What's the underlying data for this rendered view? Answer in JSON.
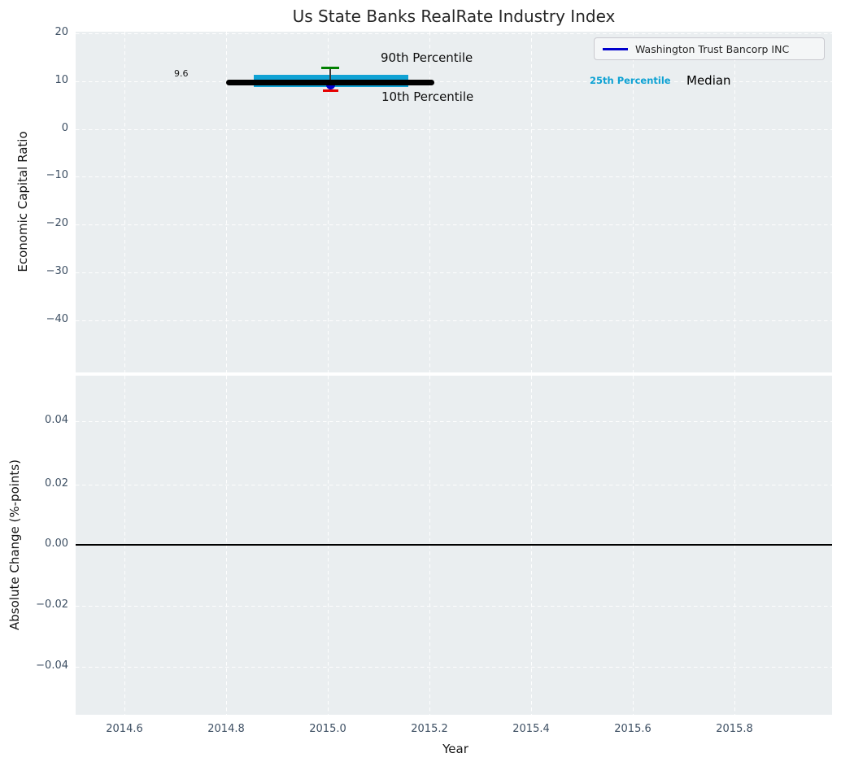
{
  "title": "Us State Banks RealRate Industry Index",
  "legend": {
    "series_label": "Washington Trust Bancorp INC"
  },
  "colors": {
    "axes_background": "#eaeef0",
    "grid": "#ffffff",
    "tick_label": "#3d4f63",
    "median_line": "#000000",
    "iqr_band": "#10a2d4",
    "p90_cap": "#008000",
    "p10_cap": "#e60000",
    "company_marker": "#0000cd",
    "legend_line": "#0000cd",
    "zero_line": "#000000",
    "p25_label_text": "#0ca1d3"
  },
  "top_chart": {
    "ylabel": "Economic Capital Ratio",
    "ytick_labels": [
      "20",
      "10",
      "0",
      "−10",
      "−20",
      "−30",
      "−40"
    ],
    "annotations": {
      "p90": "90th Percentile",
      "p10": "10th Percentile",
      "p25": "25th Percentile",
      "median": "Median",
      "value": "9.6"
    }
  },
  "bottom_chart": {
    "ylabel": "Absolute Change (%-points)",
    "xlabel": "Year",
    "ytick_labels": [
      "0.04",
      "0.02",
      "0.00",
      "−0.02",
      "−0.04"
    ],
    "xtick_labels": [
      "2014.6",
      "2014.8",
      "2015.0",
      "2015.2",
      "2015.4",
      "2015.6",
      "2015.8"
    ]
  },
  "chart_data": [
    {
      "type": "line",
      "title": "Us State Banks RealRate Industry Index",
      "xlabel": "",
      "ylabel": "Economic Capital Ratio",
      "xlim": [
        2014.5,
        2016.0
      ],
      "ylim": [
        -50.5,
        20.5
      ],
      "xticks": [
        2014.6,
        2014.8,
        2015.0,
        2015.2,
        2015.4,
        2015.6,
        2015.8
      ],
      "yticks": [
        20,
        10,
        0,
        -10,
        -20,
        -30,
        -40
      ],
      "grid": true,
      "legend_position": "upper right",
      "series": [
        {
          "name": "Median",
          "type": "line",
          "color": "#000000",
          "linewidth": 7,
          "x": [
            2014.8,
            2015.21
          ],
          "y": [
            9.6,
            9.6
          ]
        },
        {
          "name": "25th-75th Percentile band",
          "type": "area",
          "color": "#10a2d4",
          "x": [
            2014.85,
            2015.16
          ],
          "y_low": [
            8.7,
            8.7
          ],
          "y_high": [
            11.2,
            11.2
          ]
        },
        {
          "name": "10th-90th Percentile whisker",
          "type": "errorbar",
          "x": [
            2015.0
          ],
          "y_low": [
            7.7
          ],
          "y_high": [
            12.7
          ],
          "cap_high_color": "#008000",
          "cap_low_color": "#e60000"
        },
        {
          "name": "Washington Trust Bancorp INC",
          "type": "scatter",
          "color": "#0000cd",
          "x": [
            2015.0
          ],
          "y": [
            9.3
          ]
        }
      ],
      "annotations": [
        {
          "text": "9.6",
          "x": 2014.72,
          "y": 10.5
        },
        {
          "text": "90th Percentile",
          "x": 2015.1,
          "y": 14.0
        },
        {
          "text": "10th Percentile",
          "x": 2015.1,
          "y": 5.8
        },
        {
          "text": "25th Percentile",
          "x": 2015.52,
          "y": 9.6
        },
        {
          "text": "Median",
          "x": 2015.71,
          "y": 9.6
        }
      ]
    },
    {
      "type": "line",
      "title": "",
      "xlabel": "Year",
      "ylabel": "Absolute Change (%-points)",
      "xlim": [
        2014.5,
        2016.0
      ],
      "ylim": [
        -0.055,
        0.055
      ],
      "xticks": [
        2014.6,
        2014.8,
        2015.0,
        2015.2,
        2015.4,
        2015.6,
        2015.8
      ],
      "yticks": [
        0.04,
        0.02,
        0.0,
        -0.02,
        -0.04
      ],
      "grid": true,
      "series": [
        {
          "name": "zero line",
          "type": "line",
          "color": "#000000",
          "x": [
            2014.5,
            2016.0
          ],
          "y": [
            0.0,
            0.0
          ]
        }
      ]
    }
  ]
}
